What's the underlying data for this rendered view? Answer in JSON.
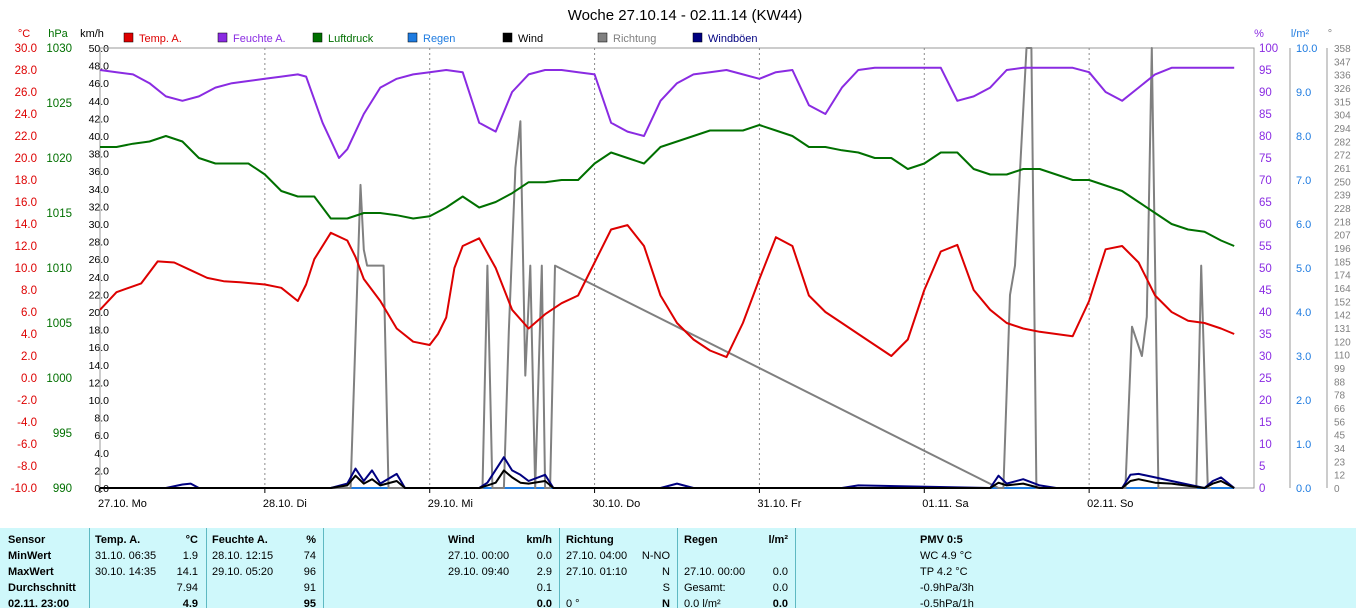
{
  "chart_data": {
    "type": "line",
    "title": "Woche 27.10.14 - 02.11.14 (KW44)",
    "unit_labels": {
      "temp": "°C",
      "pressure": "hPa",
      "wind": "km/h",
      "humidity": "%",
      "rain": "l/m²",
      "direction": "°"
    },
    "legend": [
      {
        "label": "Temp. A.",
        "color": "#dd0000"
      },
      {
        "label": "Feuchte A.",
        "color": "#8a2be2"
      },
      {
        "label": "Luftdruck",
        "color": "#007000"
      },
      {
        "label": "Regen",
        "color": "#1e7be0"
      },
      {
        "label": "Wind",
        "color": "#000000"
      },
      {
        "label": "Richtung",
        "color": "#808080"
      },
      {
        "label": "Windböen",
        "color": "#000080"
      }
    ],
    "x_ticks": [
      "27.10. Mo",
      "28.10. Di",
      "29.10. Mi",
      "30.10. Do",
      "31.10. Fr",
      "01.11. Sa",
      "02.11. So"
    ],
    "axes": {
      "temp": {
        "range": [
          -10,
          30
        ],
        "ticks": [
          "30.0",
          "28.0",
          "26.0",
          "24.0",
          "22.0",
          "20.0",
          "18.0",
          "16.0",
          "14.0",
          "12.0",
          "10.0",
          "8.0",
          "6.0",
          "4.0",
          "2.0",
          "0.0",
          "-2.0",
          "-4.0",
          "-6.0",
          "-8.0",
          "-10.0"
        ],
        "color": "#dd0000"
      },
      "pressure": {
        "range": [
          990,
          1030
        ],
        "ticks": [
          "1030",
          "1025",
          "1020",
          "1015",
          "1010",
          "1005",
          "1000",
          "995",
          "990"
        ],
        "color": "#007000"
      },
      "wind": {
        "range": [
          0,
          50
        ],
        "ticks": [
          "50.0",
          "48.0",
          "46.0",
          "44.0",
          "42.0",
          "40.0",
          "38.0",
          "36.0",
          "34.0",
          "32.0",
          "30.0",
          "28.0",
          "26.0",
          "24.0",
          "22.0",
          "20.0",
          "18.0",
          "16.0",
          "14.0",
          "12.0",
          "10.0",
          "8.0",
          "6.0",
          "4.0",
          "2.0",
          "0.0"
        ],
        "color": "#000000"
      },
      "humidity": {
        "range": [
          0,
          100
        ],
        "ticks": [
          "100",
          "95",
          "90",
          "85",
          "80",
          "75",
          "70",
          "65",
          "60",
          "55",
          "50",
          "45",
          "40",
          "35",
          "30",
          "25",
          "20",
          "15",
          "10",
          "5",
          "0"
        ],
        "color": "#8a2be2"
      },
      "rain": {
        "range": [
          0,
          10
        ],
        "ticks": [
          "10.0",
          "9.0",
          "8.0",
          "7.0",
          "6.0",
          "5.0",
          "4.0",
          "3.0",
          "2.0",
          "1.0",
          "0.0"
        ],
        "color": "#1e7be0"
      },
      "direction": {
        "range": [
          0,
          360
        ],
        "ticks": [
          "358",
          "347",
          "336",
          "326",
          "315",
          "304",
          "294",
          "282",
          "272",
          "261",
          "250",
          "239",
          "228",
          "218",
          "207",
          "196",
          "185",
          "174",
          "164",
          "152",
          "142",
          "131",
          "120",
          "110",
          "99",
          "88",
          "78",
          "66",
          "56",
          "45",
          "34",
          "23",
          "12",
          "0"
        ],
        "color": "#808080"
      }
    },
    "series": [
      {
        "name": "Temp. A.",
        "axis": "temp",
        "color": "#dd0000",
        "x": [
          0,
          0.1,
          0.25,
          0.35,
          0.45,
          0.55,
          0.65,
          0.75,
          0.85,
          1.0,
          1.1,
          1.2,
          1.25,
          1.3,
          1.4,
          1.5,
          1.55,
          1.6,
          1.7,
          1.8,
          1.9,
          2.0,
          2.05,
          2.1,
          2.15,
          2.2,
          2.3,
          2.4,
          2.5,
          2.6,
          2.7,
          2.8,
          2.9,
          3.0,
          3.1,
          3.2,
          3.3,
          3.4,
          3.5,
          3.6,
          3.7,
          3.8,
          3.9,
          4.0,
          4.1,
          4.2,
          4.3,
          4.4,
          4.5,
          4.6,
          4.7,
          4.8,
          4.9,
          5.0,
          5.1,
          5.2,
          5.3,
          5.4,
          5.5,
          5.6,
          5.7,
          5.8,
          5.9,
          6.0,
          6.1,
          6.2,
          6.3,
          6.4,
          6.5,
          6.6,
          6.7,
          6.8,
          6.88
        ],
        "values": [
          6.2,
          7.8,
          8.6,
          10.6,
          10.5,
          9.8,
          9.1,
          8.8,
          8.7,
          8.5,
          8.2,
          7.0,
          8.5,
          10.8,
          13.2,
          12.5,
          11.0,
          9.0,
          7.0,
          4.5,
          3.3,
          3.0,
          4.0,
          5.5,
          10.0,
          12.0,
          12.7,
          10.0,
          6.2,
          4.5,
          5.8,
          6.8,
          7.5,
          10.5,
          13.5,
          13.9,
          12.0,
          7.5,
          5.0,
          3.5,
          2.5,
          1.9,
          5.0,
          9.0,
          12.8,
          12.0,
          7.5,
          6.0,
          5.0,
          4.0,
          3.0,
          2.0,
          3.5,
          8.0,
          11.5,
          12.1,
          8.0,
          6.2,
          5.0,
          4.5,
          4.2,
          4.0,
          3.8,
          7.0,
          11.7,
          12.0,
          10.5,
          7.5,
          6.0,
          5.2,
          5.0,
          4.5,
          4.0
        ]
      },
      {
        "name": "Feuchte A.",
        "axis": "humidity",
        "color": "#8a2be2",
        "x": [
          0,
          0.1,
          0.2,
          0.3,
          0.4,
          0.5,
          0.6,
          0.7,
          0.8,
          0.9,
          1.0,
          1.1,
          1.2,
          1.25,
          1.35,
          1.45,
          1.5,
          1.6,
          1.7,
          1.8,
          1.9,
          2.0,
          2.1,
          2.2,
          2.3,
          2.4,
          2.5,
          2.6,
          2.7,
          2.8,
          2.9,
          3.0,
          3.1,
          3.2,
          3.3,
          3.4,
          3.5,
          3.6,
          3.7,
          3.8,
          3.9,
          4.0,
          4.1,
          4.2,
          4.3,
          4.4,
          4.5,
          4.6,
          4.7,
          4.8,
          4.9,
          5.0,
          5.1,
          5.2,
          5.3,
          5.4,
          5.5,
          5.6,
          5.7,
          5.8,
          5.9,
          6.0,
          6.1,
          6.2,
          6.3,
          6.4,
          6.5,
          6.6,
          6.7,
          6.8,
          6.88
        ],
        "values": [
          95,
          94.5,
          94,
          92,
          89,
          88,
          89,
          91,
          92,
          92.5,
          93,
          93.5,
          94,
          93.5,
          83,
          75,
          77,
          85,
          91,
          93,
          94,
          94.5,
          95,
          94.5,
          83,
          81,
          90,
          94,
          95,
          95,
          94.5,
          94,
          83,
          81,
          80,
          88,
          92,
          94,
          94.5,
          95,
          94,
          93,
          94.5,
          95,
          87,
          85,
          91,
          95,
          95.5,
          95.5,
          95.5,
          95.5,
          95.5,
          88,
          89,
          91,
          95,
          95.5,
          95.5,
          95.5,
          95.5,
          94.5,
          90,
          88,
          91,
          94,
          95.5,
          95.5,
          95.5,
          95.5,
          95.5
        ]
      },
      {
        "name": "Luftdruck",
        "axis": "pressure",
        "color": "#007000",
        "x": [
          0,
          0.1,
          0.2,
          0.3,
          0.4,
          0.5,
          0.6,
          0.7,
          0.8,
          0.9,
          1.0,
          1.1,
          1.2,
          1.3,
          1.4,
          1.5,
          1.6,
          1.7,
          1.8,
          1.9,
          2.0,
          2.1,
          2.2,
          2.3,
          2.4,
          2.5,
          2.6,
          2.7,
          2.8,
          2.9,
          3.0,
          3.1,
          3.2,
          3.3,
          3.4,
          3.5,
          3.6,
          3.7,
          3.8,
          3.9,
          4.0,
          4.1,
          4.2,
          4.3,
          4.4,
          4.5,
          4.6,
          4.7,
          4.8,
          4.9,
          5.0,
          5.1,
          5.2,
          5.3,
          5.4,
          5.5,
          5.6,
          5.7,
          5.8,
          5.9,
          6.0,
          6.1,
          6.2,
          6.3,
          6.4,
          6.5,
          6.6,
          6.7,
          6.8,
          6.88
        ],
        "values": [
          1021,
          1021,
          1021.3,
          1021.5,
          1022,
          1021.5,
          1020,
          1019.5,
          1019.5,
          1019.5,
          1018.5,
          1017,
          1016.5,
          1016.5,
          1014.5,
          1014.5,
          1015,
          1015,
          1014.8,
          1014.5,
          1014.7,
          1015.5,
          1016.5,
          1015.5,
          1016,
          1016.8,
          1017.8,
          1017.8,
          1018,
          1018,
          1019.5,
          1020.5,
          1020,
          1019.5,
          1021,
          1021.5,
          1022,
          1022.5,
          1022.5,
          1022.5,
          1023,
          1022.5,
          1022,
          1021,
          1021,
          1020.7,
          1020.5,
          1020,
          1020,
          1019,
          1019.5,
          1020.5,
          1020.5,
          1019,
          1018.5,
          1018.5,
          1019,
          1019,
          1018.5,
          1018,
          1018,
          1017.5,
          1017,
          1016,
          1015,
          1014,
          1013.5,
          1013.3,
          1012.5,
          1012
        ]
      },
      {
        "name": "Wind",
        "axis": "wind",
        "color": "#000000",
        "x": [
          0,
          0.5,
          1.4,
          1.5,
          1.55,
          1.6,
          1.65,
          1.7,
          1.8,
          1.85,
          1.9,
          2.3,
          2.35,
          2.4,
          2.45,
          2.5,
          2.55,
          2.6,
          2.7,
          2.75,
          2.8,
          3.0,
          4.0,
          5.4,
          5.45,
          5.5,
          5.6,
          5.7,
          5.8,
          6.2,
          6.25,
          6.3,
          6.4,
          6.5,
          6.7,
          6.75,
          6.8,
          6.88
        ],
        "values": [
          0,
          0,
          0,
          0.3,
          1.4,
          0.5,
          1.0,
          0.3,
          0.8,
          0,
          0,
          0,
          0.3,
          0.6,
          2.0,
          1.2,
          0.6,
          0.5,
          0.8,
          0,
          0,
          0,
          0,
          0,
          0.6,
          0.3,
          0.5,
          0,
          0,
          0,
          0.8,
          1.0,
          0.6,
          0.5,
          0,
          0.5,
          0.8,
          0
        ]
      },
      {
        "name": "Windböen",
        "axis": "wind",
        "color": "#000080",
        "x": [
          0,
          0.4,
          0.5,
          0.55,
          0.6,
          1.4,
          1.5,
          1.55,
          1.6,
          1.65,
          1.7,
          1.8,
          1.85,
          1.9,
          2.3,
          2.35,
          2.45,
          2.5,
          2.55,
          2.6,
          2.7,
          2.75,
          2.8,
          3.4,
          3.5,
          3.6,
          4.5,
          4.6,
          5.4,
          5.45,
          5.5,
          5.6,
          5.7,
          5.8,
          6.2,
          6.25,
          6.3,
          6.4,
          6.5,
          6.7,
          6.75,
          6.8,
          6.88
        ],
        "values": [
          0,
          0,
          0.4,
          0.5,
          0,
          0,
          0.5,
          2.2,
          0.8,
          2.0,
          0.5,
          1.6,
          0,
          0,
          0,
          0.6,
          3.5,
          2.0,
          1.5,
          0.8,
          1.5,
          0,
          0,
          0,
          0.5,
          0,
          0,
          0.3,
          0,
          1.4,
          0.5,
          1.0,
          0.3,
          0,
          0,
          1.5,
          1.6,
          1.2,
          0.8,
          0,
          0.8,
          1.2,
          0
        ]
      },
      {
        "name": "Richtung",
        "axis": "direction",
        "color": "#808080",
        "x": [
          0,
          1.45,
          1.52,
          1.58,
          1.6,
          1.62,
          1.68,
          1.72,
          1.75,
          1.78,
          2.3,
          2.32,
          2.35,
          2.38,
          2.45,
          2.48,
          2.52,
          2.55,
          2.58,
          2.61,
          2.64,
          2.68,
          2.7,
          2.73,
          2.76,
          5.45,
          5.48,
          5.52,
          5.55,
          5.62,
          5.65,
          5.68,
          5.72,
          6.18,
          6.22,
          6.26,
          6.32,
          6.35,
          6.38,
          6.42,
          6.62,
          6.65,
          6.68,
          6.72,
          6.74
        ],
        "values": [
          0,
          0,
          0,
          248,
          195,
          182,
          182,
          182,
          0,
          0,
          0,
          0,
          182,
          0,
          0,
          128,
          262,
          300,
          92,
          182,
          0,
          182,
          0,
          0,
          182,
          0,
          0,
          158,
          182,
          360,
          360,
          0,
          0,
          0,
          0,
          132,
          108,
          140,
          360,
          0,
          0,
          0,
          182,
          0,
          0
        ]
      },
      {
        "name": "Regen",
        "axis": "rain",
        "color": "#1e7be0",
        "x": [
          0,
          6.88
        ],
        "values": [
          0,
          0
        ]
      }
    ]
  },
  "table": {
    "sensor": {
      "header": "Sensor",
      "rows": [
        "MinWert",
        "MaxWert",
        "Durchschnitt",
        "02.11. 23:00"
      ]
    },
    "temp": {
      "header": "Temp. A.",
      "unit": "°C",
      "rows": [
        {
          "time": "31.10.  06:35",
          "value": "1.9"
        },
        {
          "time": "30.10.  14:35",
          "value": "14.1"
        },
        {
          "time": "",
          "value": "7.94"
        },
        {
          "time": "",
          "value": "4.9"
        }
      ]
    },
    "humidity": {
      "header": "Feuchte A.",
      "unit": "%",
      "rows": [
        {
          "time": "28.10.  12:15",
          "value": "74"
        },
        {
          "time": "29.10.  05:20",
          "value": "96"
        },
        {
          "time": "",
          "value": "91"
        },
        {
          "time": "",
          "value": "95"
        }
      ]
    },
    "wind": {
      "header": "Wind",
      "unit": "km/h",
      "rows": [
        {
          "time": "27.10.  00:00",
          "value": "0.0"
        },
        {
          "time": "29.10.  09:40",
          "value": "2.9"
        },
        {
          "time": "",
          "value": "0.1"
        },
        {
          "time": "",
          "value": "0.0"
        }
      ]
    },
    "direction": {
      "header": "Richtung",
      "rows": [
        {
          "time": "27.10.  04:00",
          "value": "N-NO"
        },
        {
          "time": "27.10.  01:10",
          "value": "N"
        },
        {
          "time": "",
          "value": "S"
        },
        {
          "time": "0 °",
          "value": "N"
        }
      ]
    },
    "rain": {
      "header": "Regen",
      "unit": "l/m²",
      "rows": [
        {
          "time": "",
          "value": ""
        },
        {
          "time": "27.10.  00:00",
          "value": "0.0"
        },
        {
          "time": "Gesamt:",
          "value": "0.0"
        },
        {
          "time": "0.0 l/m²",
          "value": "0.0"
        }
      ]
    },
    "pmv": {
      "header": "PMV 0:5",
      "lines": [
        "WC 4.9 °C",
        "TP 4.2 °C",
        "-0.9hPa/3h",
        "-0.5hPa/1h"
      ]
    }
  }
}
